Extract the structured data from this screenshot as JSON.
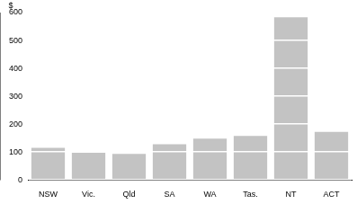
{
  "chart_data": {
    "type": "bar",
    "y_label": "$",
    "categories": [
      "NSW",
      "Vic.",
      "Qld",
      "SA",
      "WA",
      "Tas.",
      "NT",
      "ACT"
    ],
    "values": [
      115,
      97,
      93,
      128,
      148,
      158,
      583,
      172
    ],
    "color": "#c3c3c3",
    "ylim": [
      0,
      600
    ],
    "yticks": [
      0,
      100,
      200,
      300,
      400,
      500,
      600
    ],
    "grid": true
  }
}
